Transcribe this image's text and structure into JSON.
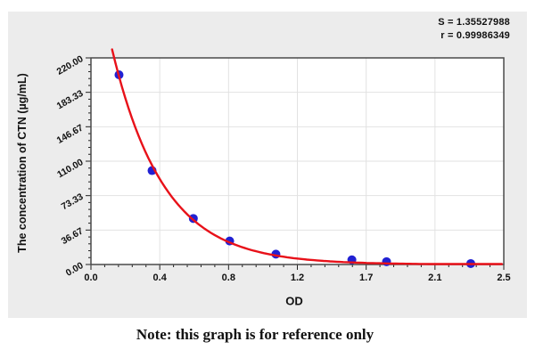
{
  "stats": {
    "line1": "S = 1.35527988",
    "line2": "r = 0.99986349"
  },
  "note": "Note: this graph is for reference only",
  "chart_data": {
    "type": "scatter",
    "title": "",
    "xlabel": "OD",
    "ylabel": "The concentration of CTN (µg/mL)",
    "xlim": [
      0,
      2.5
    ],
    "ylim": [
      0,
      220
    ],
    "grid": true,
    "legend": "none",
    "x_tick_labels": [
      "0.0",
      "0.4",
      "0.8",
      "1.2",
      "1.7",
      "2.1",
      "2.5"
    ],
    "y_tick_labels": [
      "0.00",
      "36.67",
      "73.33",
      "110.00",
      "146.67",
      "183.33",
      "220.00"
    ],
    "minor_ticks_per_interval": 4,
    "points": [
      {
        "od": 0.17,
        "concentration": 202
      },
      {
        "od": 0.37,
        "concentration": 100
      },
      {
        "od": 0.62,
        "concentration": 49
      },
      {
        "od": 0.84,
        "concentration": 25
      },
      {
        "od": 1.12,
        "concentration": 11
      },
      {
        "od": 1.58,
        "concentration": 5
      },
      {
        "od": 1.79,
        "concentration": 3
      },
      {
        "od": 2.3,
        "concentration": 1
      }
    ],
    "fit_curve": {
      "model": "C = A * exp(-k * OD)",
      "A": 345,
      "k": 3.2,
      "od_start": 0.128,
      "od_end": 2.5
    },
    "stats": {
      "S": "1.35527988",
      "r": "0.99986349"
    },
    "colors": {
      "curve_red": "#e81119",
      "point_blue": "#2121d3",
      "panel_bg": "#ececec",
      "plot_bg": "#ffffff",
      "grid": "#e2e2e2",
      "frame": "#4a4a4a",
      "tick": "#222222"
    }
  }
}
